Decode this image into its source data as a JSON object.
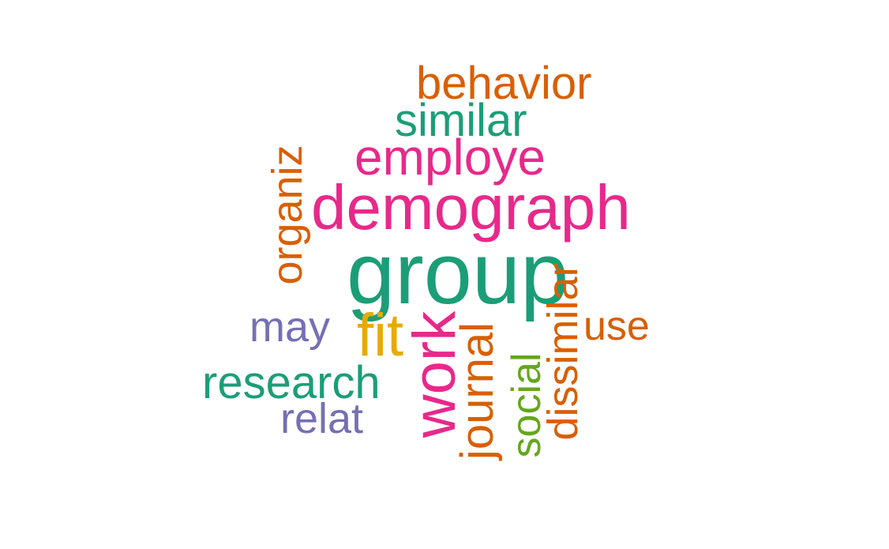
{
  "palette": {
    "teal": "#1b9e77",
    "orange": "#d95f02",
    "purple": "#7570b3",
    "magenta": "#e7298a",
    "green": "#66a61e",
    "gold": "#e6ab02"
  },
  "words": [
    {
      "id": "behavior",
      "text": "behavior",
      "color": "#d95f02",
      "orientation": "horizontal"
    },
    {
      "id": "similar",
      "text": "similar",
      "color": "#1b9e77",
      "orientation": "horizontal"
    },
    {
      "id": "employe",
      "text": "employe",
      "color": "#e7298a",
      "orientation": "horizontal"
    },
    {
      "id": "organiz",
      "text": "organiz",
      "color": "#d95f02",
      "orientation": "vertical"
    },
    {
      "id": "demograph",
      "text": "demograph",
      "color": "#e7298a",
      "orientation": "horizontal"
    },
    {
      "id": "group",
      "text": "group",
      "color": "#1b9e77",
      "orientation": "horizontal"
    },
    {
      "id": "may",
      "text": "may",
      "color": "#7570b3",
      "orientation": "horizontal"
    },
    {
      "id": "fit",
      "text": "fit",
      "color": "#e6ab02",
      "orientation": "horizontal"
    },
    {
      "id": "work",
      "text": "work",
      "color": "#e7298a",
      "orientation": "vertical"
    },
    {
      "id": "journal",
      "text": "journal",
      "color": "#d95f02",
      "orientation": "vertical"
    },
    {
      "id": "social",
      "text": "social",
      "color": "#66a61e",
      "orientation": "vertical"
    },
    {
      "id": "dissimilar",
      "text": "dissimilar",
      "color": "#d95f02",
      "orientation": "vertical"
    },
    {
      "id": "use",
      "text": "use",
      "color": "#d95f02",
      "orientation": "horizontal"
    },
    {
      "id": "research",
      "text": "research",
      "color": "#1b9e77",
      "orientation": "horizontal"
    },
    {
      "id": "relat",
      "text": "relat",
      "color": "#7570b3",
      "orientation": "horizontal"
    }
  ]
}
